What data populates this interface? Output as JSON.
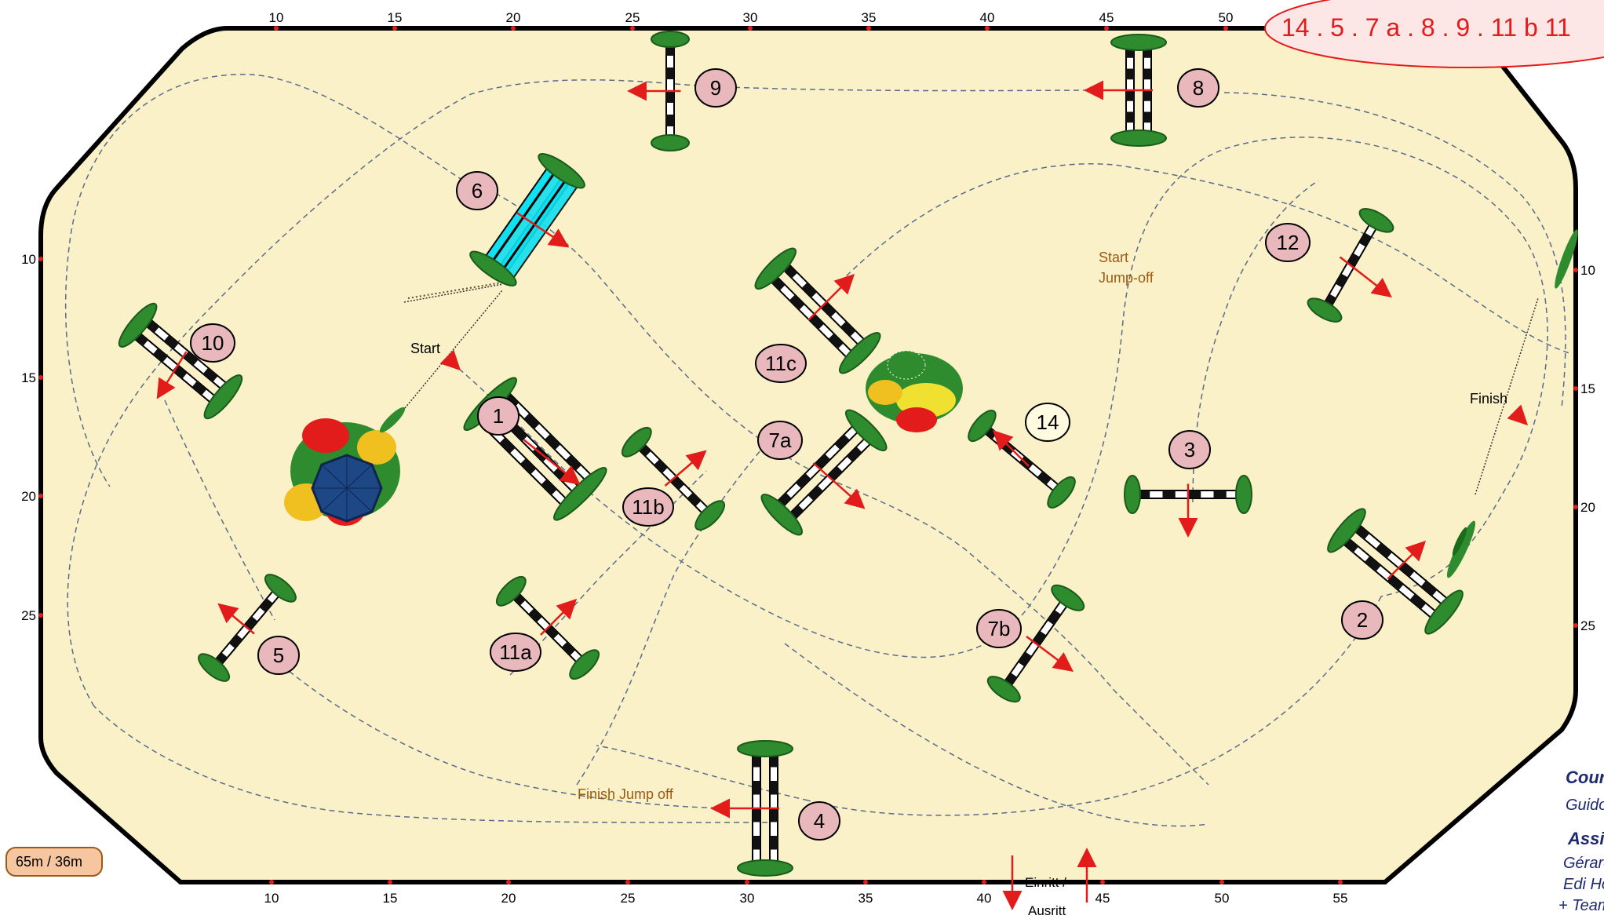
{
  "arena": {
    "scale_top": [
      "10",
      "15",
      "20",
      "25",
      "30",
      "35",
      "40",
      "45",
      "50"
    ],
    "scale_bottom": [
      "10",
      "15",
      "20",
      "25",
      "30",
      "35",
      "40",
      "45",
      "50",
      "55"
    ],
    "scale_left": [
      "10",
      "15",
      "20",
      "25"
    ],
    "scale_right": [
      "10",
      "15",
      "20",
      "25"
    ],
    "colors": {
      "ground": "#fbf1c8",
      "border": "#000000",
      "marker": "#e21b1b",
      "number_fill": "#e8b8bd",
      "path": "#5a6b8c"
    }
  },
  "combination": "14 . 5 . 7 a  . 8 . 9 . 11 b 11",
  "obstacles": [
    {
      "label": "1"
    },
    {
      "label": "2"
    },
    {
      "label": "3"
    },
    {
      "label": "4"
    },
    {
      "label": "5"
    },
    {
      "label": "6"
    },
    {
      "label": "7a"
    },
    {
      "label": "7b"
    },
    {
      "label": "8"
    },
    {
      "label": "9"
    },
    {
      "label": "10"
    },
    {
      "label": "11a"
    },
    {
      "label": "11b"
    },
    {
      "label": "11c"
    },
    {
      "label": "12"
    },
    {
      "label": "14"
    }
  ],
  "annotations": {
    "start": "Start",
    "start_jumpoff_line1": "Start",
    "start_jumpoff_line2": "Jump-off",
    "finish": "Finish",
    "finish_jumpoff": "Finish Jump off",
    "entry_line1": "Einritt /",
    "entry_line2": "Ausritt"
  },
  "size_badge": "65m / 36m",
  "credits": {
    "course_title": "Course",
    "course_name": "Guido B",
    "assistant_title": "Assistan",
    "assistant_1": "Gérard L",
    "assistant_2": "Edi Hofr",
    "assistant_3": "+ Team"
  }
}
